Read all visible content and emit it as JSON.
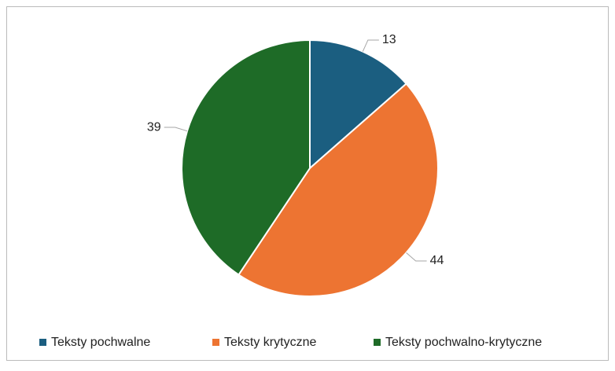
{
  "chart_data": {
    "type": "pie",
    "categories": [
      "Teksty pochwalne",
      "Teksty krytyczne",
      "Teksty pochwalno-krytyczne"
    ],
    "values": [
      13,
      44,
      39
    ],
    "colors": [
      "#1b5e80",
      "#ed7432",
      "#1e6b27"
    ],
    "legend": "bottom"
  }
}
